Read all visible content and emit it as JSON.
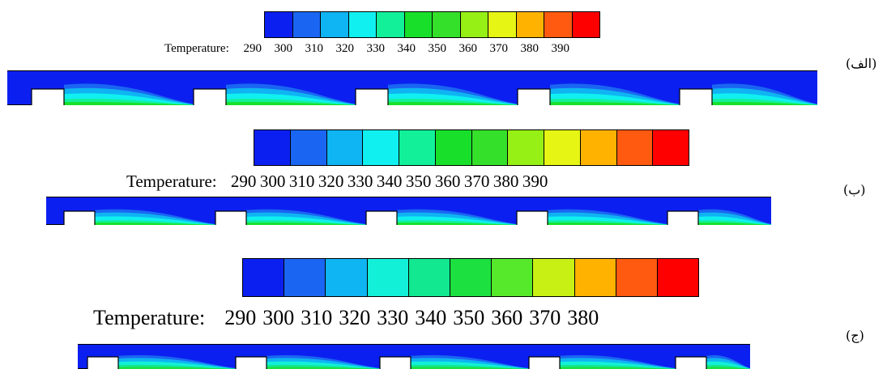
{
  "panels": [
    {
      "label": "(الف)",
      "legend": {
        "title": "Temperature:",
        "ticks": [
          "290",
          "300",
          "310",
          "320",
          "330",
          "340",
          "350",
          "360",
          "370",
          "380",
          "390"
        ]
      },
      "colors": [
        "#0b20f0",
        "#1a66f2",
        "#0fb4f2",
        "#10f0f0",
        "#12f09a",
        "#18e02a",
        "#35e02a",
        "#96f016",
        "#e6f514",
        "#ffb300",
        "#ff5a10",
        "#ff0000"
      ]
    },
    {
      "label": "(ب)",
      "legend": {
        "title": "Temperature:",
        "ticks": [
          "290",
          "300",
          "310",
          "320",
          "330",
          "340",
          "350",
          "360",
          "370",
          "380",
          "390"
        ]
      },
      "colors": [
        "#0b20f0",
        "#1a66f2",
        "#0fb4f2",
        "#10f0f0",
        "#12f09a",
        "#18e02a",
        "#35e02a",
        "#96f016",
        "#e6f514",
        "#ffb300",
        "#ff5a10",
        "#ff0000"
      ]
    },
    {
      "label": "(ج)",
      "legend": {
        "title": "Temperature:",
        "ticks": [
          "290",
          "300",
          "310",
          "320",
          "330",
          "340",
          "350",
          "360",
          "370",
          "380"
        ]
      },
      "colors": [
        "#0b20f0",
        "#1a66f2",
        "#0fb4f2",
        "#12f0d8",
        "#12e890",
        "#1ce040",
        "#56e82a",
        "#c8f014",
        "#ffb300",
        "#ff5a10",
        "#ff0000"
      ]
    }
  ]
}
